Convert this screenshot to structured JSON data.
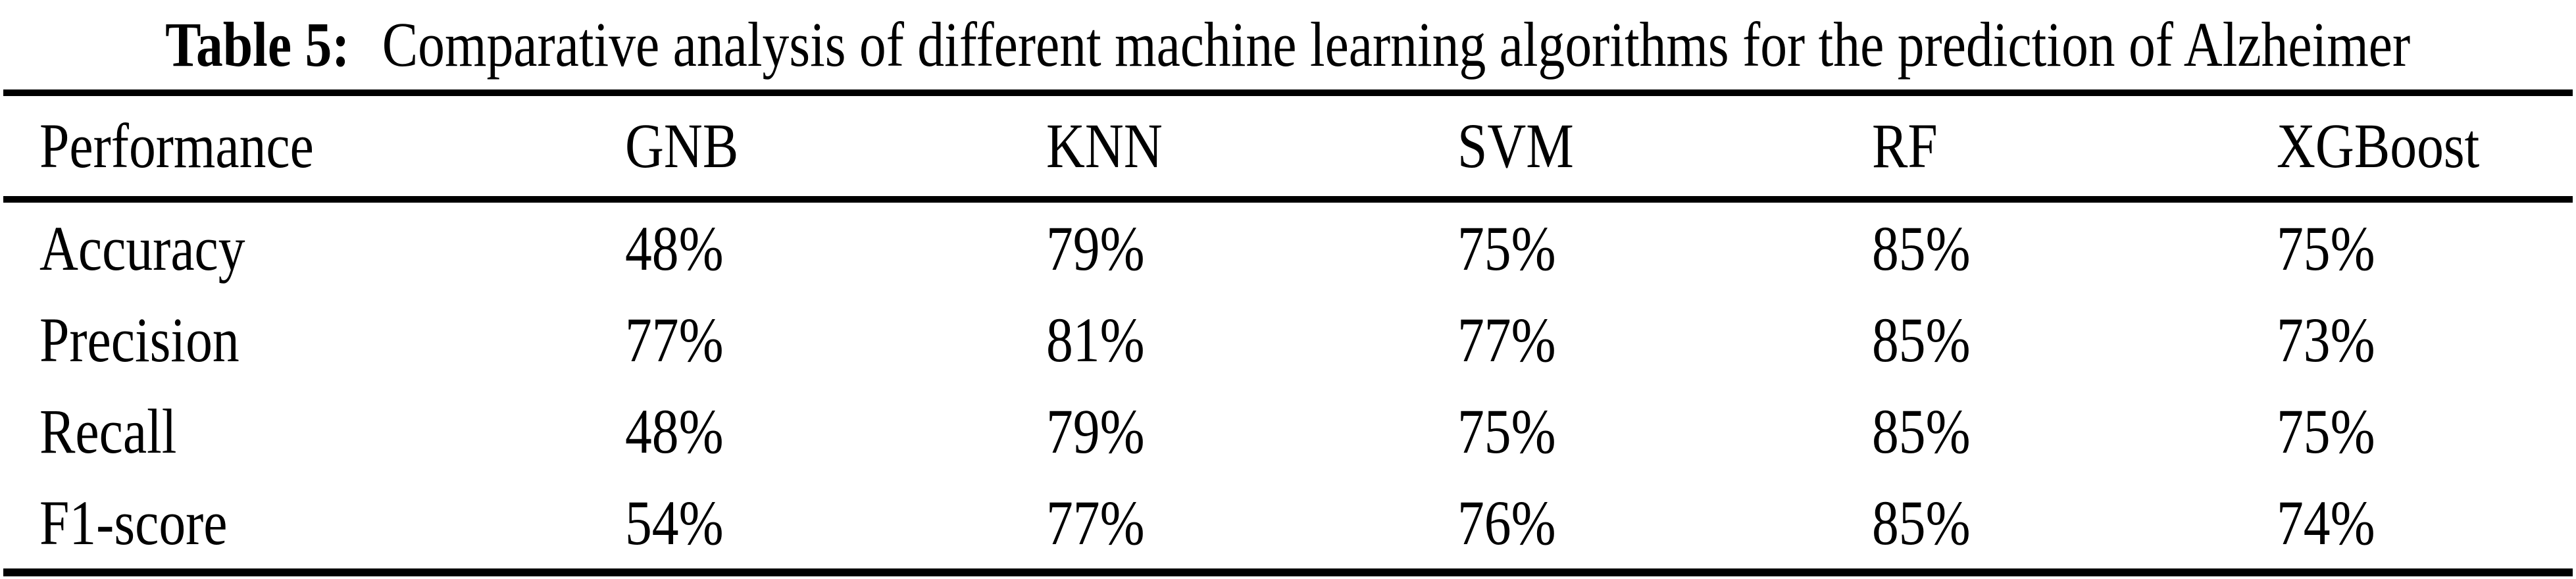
{
  "caption": {
    "label": "Table 5:",
    "text": "Comparative analysis of different machine learning algorithms for the prediction of Alzheimer"
  },
  "table": {
    "columns": [
      "Performance",
      "GNB",
      "KNN",
      "SVM",
      "RF",
      "XGBoost"
    ],
    "rows": [
      {
        "metric": "Accuracy",
        "values": [
          "48%",
          "79%",
          "75%",
          "85%",
          "75%"
        ]
      },
      {
        "metric": "Precision",
        "values": [
          "77%",
          "81%",
          "77%",
          "85%",
          "73%"
        ]
      },
      {
        "metric": "Recall",
        "values": [
          "48%",
          "79%",
          "75%",
          "85%",
          "75%"
        ]
      },
      {
        "metric": "F1-score",
        "values": [
          "54%",
          "77%",
          "76%",
          "85%",
          "74%"
        ]
      }
    ]
  },
  "colors": {
    "text": "#000000",
    "background": "#ffffff",
    "rule": "#000000"
  }
}
